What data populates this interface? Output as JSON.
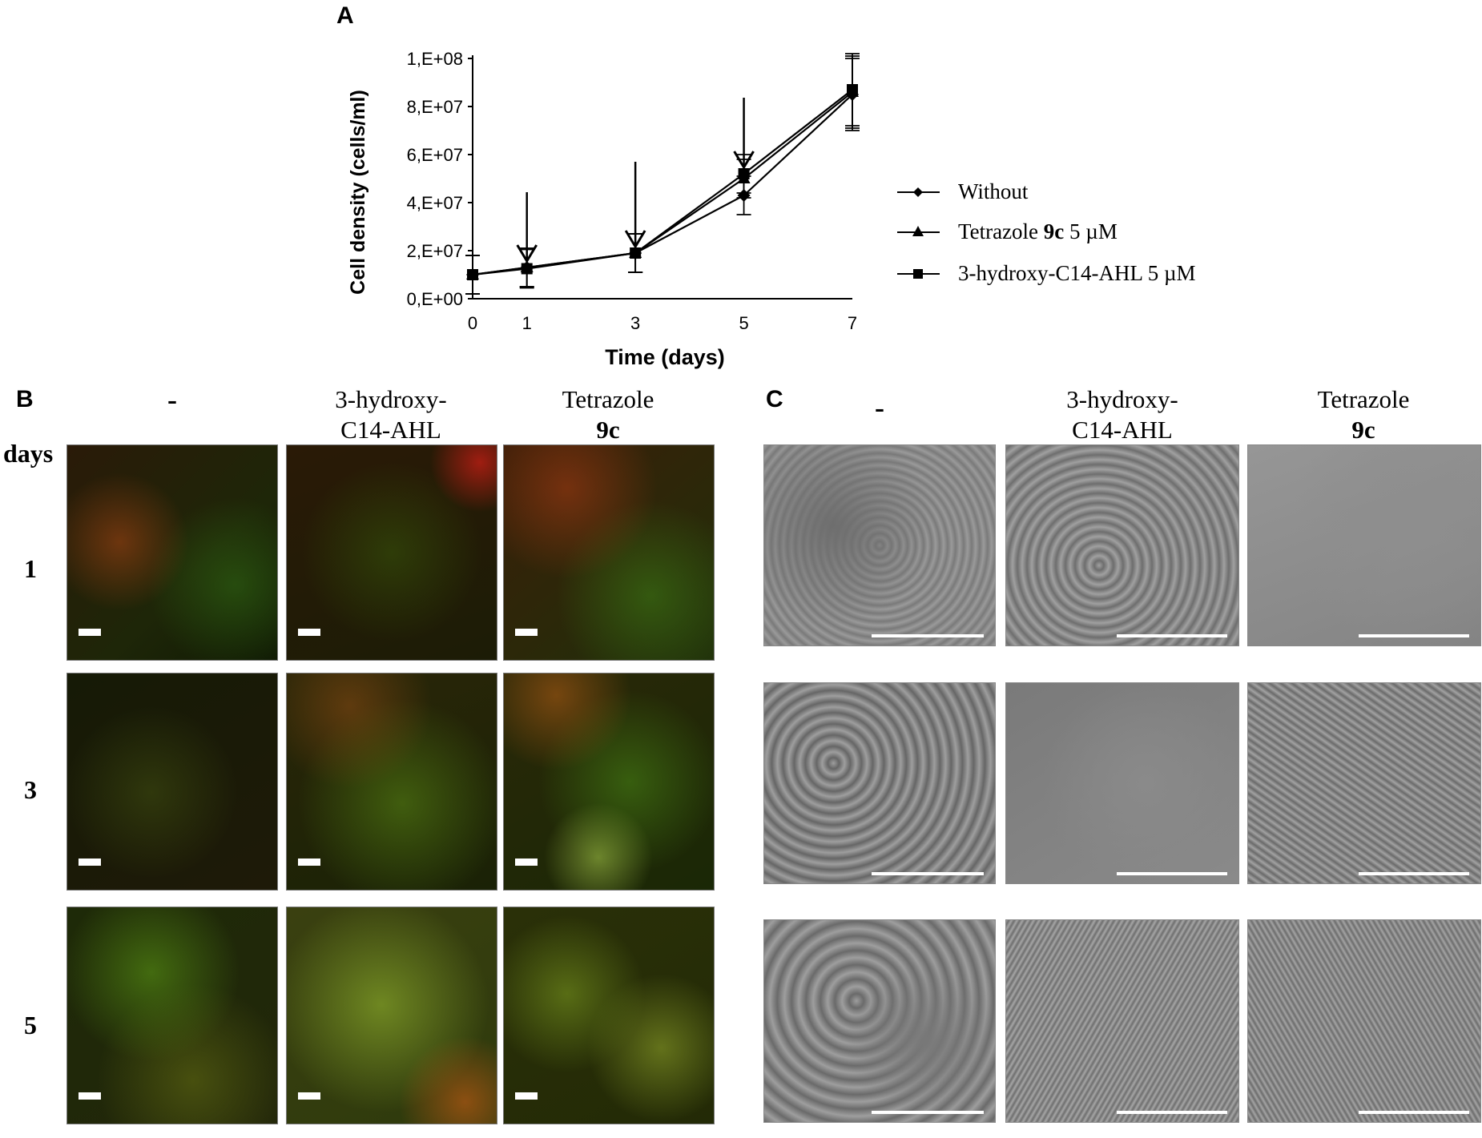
{
  "panel_a": {
    "letter": "A",
    "chart_data": {
      "type": "line",
      "xlabel": "Time (days)",
      "ylabel": "Cell density (cells/ml)",
      "x": [
        0,
        1,
        3,
        5,
        7
      ],
      "x_ticks": [
        "0",
        "1",
        "3",
        "5",
        "7"
      ],
      "y_ticks": [
        "0,E+00",
        "2,E+07",
        "4,E+07",
        "6,E+07",
        "8,E+07",
        "1,E+08"
      ],
      "ylim": [
        0,
        100000000
      ],
      "series": [
        {
          "name": "Without",
          "marker": "diamond",
          "values": [
            10000000,
            13000000,
            19000000,
            43000000,
            85000000
          ],
          "err": [
            8000000,
            8000000,
            8000000,
            8000000,
            15000000
          ]
        },
        {
          "name": "Tetrazole 9c 5 µM",
          "marker": "triangle",
          "values": [
            10000000,
            13000000,
            19000000,
            50000000,
            86000000
          ],
          "err": [
            8000000,
            8000000,
            8000000,
            8000000,
            15000000
          ]
        },
        {
          "name": "3-hydroxy-C14-AHL 5 µM",
          "marker": "square",
          "values": [
            10000000,
            12500000,
            19000000,
            52000000,
            87000000
          ],
          "err": [
            8000000,
            8000000,
            8000000,
            8000000,
            15000000
          ]
        }
      ],
      "arrows_at_x": [
        1,
        3,
        5
      ],
      "legend_position": "right",
      "grid": false
    }
  },
  "legend": {
    "without": "Without",
    "tetrazole_prefix": "Tetrazole ",
    "tetrazole_bold": "9c",
    "tetrazole_suffix": " 5 µM",
    "ahl": "3-hydroxy-C14-AHL 5 µM"
  },
  "panel_b": {
    "letter": "B",
    "days_label": "days",
    "col_none": "-",
    "col_ahl_line1": "3-hydroxy-",
    "col_ahl_line2": "C14-AHL",
    "col_tet_line1": "Tetrazole",
    "col_tet_line2": "9c",
    "rows": [
      "1",
      "3",
      "5"
    ]
  },
  "panel_c": {
    "letter": "C",
    "col_none": "-",
    "col_ahl_line1": "3-hydroxy-",
    "col_ahl_line2": "C14-AHL",
    "col_tet_line1": "Tetrazole",
    "col_tet_line2": "9c"
  },
  "colors": {
    "fluor_green": "#3c8a10",
    "fluor_dark": "#1a1a06",
    "fluor_red": "#b03010",
    "sem_gray": "#8a8a8a"
  }
}
